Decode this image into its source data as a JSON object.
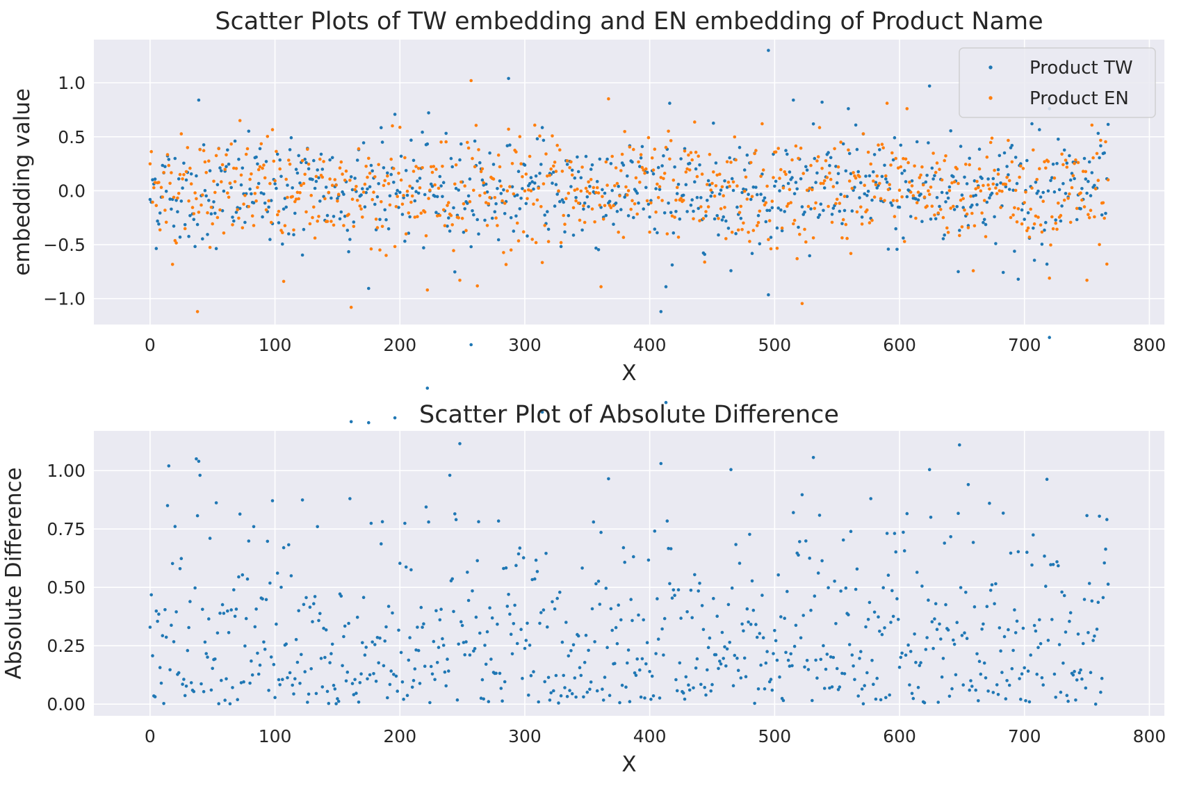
{
  "chart_data": [
    {
      "type": "scatter",
      "title": "Scatter Plots of TW embedding and EN embedding of Product Name",
      "xlabel": "X",
      "ylabel": "embedding value",
      "xlim": [
        -45,
        812
      ],
      "ylim": [
        -1.24,
        1.4
      ],
      "xticks": [
        0,
        100,
        200,
        300,
        400,
        500,
        600,
        700,
        800
      ],
      "xtick_labels": [
        "0",
        "100",
        "200",
        "300",
        "400",
        "500",
        "600",
        "700",
        "800"
      ],
      "yticks": [
        -1.0,
        -0.5,
        0.0,
        0.5,
        1.0
      ],
      "ytick_labels": [
        "−1.0",
        "−0.5",
        "0.0",
        "0.5",
        "1.0"
      ],
      "grid": true,
      "legend_position": "top-right",
      "n_points": 768,
      "point_data_note": "",
      "series": [
        {
          "name": "Product TW",
          "color": "#1f77b4",
          "highlights": [
            [
              39,
              0.84
            ],
            [
              287,
              1.04
            ],
            [
              409,
              -1.12
            ],
            [
              413,
              -0.89
            ],
            [
              416,
              0.81
            ],
            [
              495,
              1.3
            ],
            [
              515,
              0.84
            ],
            [
              559,
              0.76
            ],
            [
              624,
              0.97
            ],
            [
              720,
              -1.13
            ],
            [
              720,
              0.76
            ],
            [
              695,
              -0.82
            ],
            [
              647,
              -0.75
            ]
          ],
          "values": []
        },
        {
          "name": "Product EN",
          "color": "#ff7f0e",
          "highlights": [
            [
              38,
              -1.12
            ],
            [
              161,
              -1.08
            ],
            [
              257,
              1.02
            ],
            [
              222,
              -0.92
            ],
            [
              361,
              -0.89
            ],
            [
              107,
              -0.84
            ],
            [
              720,
              -0.81
            ],
            [
              750,
              -0.83
            ],
            [
              248,
              -0.83
            ],
            [
              766,
              -0.68
            ],
            [
              590,
              0.81
            ],
            [
              606,
              0.76
            ]
          ],
          "values": []
        }
      ]
    },
    {
      "type": "scatter",
      "title": "Scatter Plot of Absolute Difference",
      "xlabel": "X",
      "ylabel": "Absolute Difference",
      "xlim": [
        -45,
        812
      ],
      "ylim": [
        -0.05,
        1.17
      ],
      "xticks": [
        0,
        100,
        200,
        300,
        400,
        500,
        600,
        700,
        800
      ],
      "xtick_labels": [
        "0",
        "100",
        "200",
        "300",
        "400",
        "500",
        "600",
        "700",
        "800"
      ],
      "yticks": [
        0.0,
        0.25,
        0.5,
        0.75,
        1.0
      ],
      "ytick_labels": [
        "0.00",
        "0.25",
        "0.50",
        "0.75",
        "1.00"
      ],
      "grid": true,
      "n_points": 768,
      "series": [
        {
          "name": "",
          "color": "#1f77b4",
          "highlights": [
            [
              15,
              1.02
            ],
            [
              14,
              0.85
            ],
            [
              37,
              1.05
            ],
            [
              40,
              0.98
            ],
            [
              160,
              0.88
            ],
            [
              240,
              0.98
            ],
            [
              409,
              1.07
            ],
            [
              409,
              1.03
            ],
            [
              648,
              1.11
            ],
            [
              655,
              0.94
            ],
            [
              672,
              0.86
            ],
            [
              577,
              0.88
            ],
            [
              515,
              0.82
            ],
            [
              625,
              0.8
            ],
            [
              83,
              0.76
            ],
            [
              134,
              0.76
            ],
            [
              223,
              0.78
            ],
            [
              245,
              0.79
            ],
            [
              355,
              0.78
            ]
          ],
          "values": []
        }
      ]
    }
  ],
  "colors": {
    "plot_background": "#eaeaf2",
    "grid": "#ffffff",
    "tw": "#1f77b4",
    "en": "#ff7f0e",
    "text": "#262626"
  }
}
